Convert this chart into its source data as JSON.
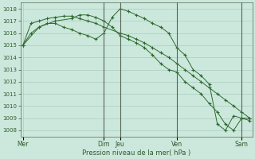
{
  "background_color": "#cce8dc",
  "grid_color": "#aaccc0",
  "line_color": "#2d6a2d",
  "marker_color": "#2d6a2d",
  "xlabel_text": "Pression niveau de la mer( hPa )",
  "ylim": [
    1007.5,
    1018.5
  ],
  "yticks": [
    1008,
    1009,
    1010,
    1011,
    1012,
    1013,
    1014,
    1015,
    1016,
    1017,
    1018
  ],
  "x_day_labels": [
    "Mer",
    "Dim",
    "Jeu",
    "Ven",
    "Sam"
  ],
  "x_day_positions": [
    0,
    10,
    12,
    19,
    27
  ],
  "xlim": [
    -0.3,
    28.3
  ],
  "series1": {
    "x": [
      0,
      1,
      2,
      3,
      4,
      5,
      6,
      7,
      8,
      9,
      10,
      12,
      13,
      14,
      15,
      16,
      17,
      18,
      19,
      20,
      21,
      22,
      23,
      24,
      25,
      26,
      27,
      28
    ],
    "y": [
      1015.0,
      1016.8,
      1017.0,
      1017.2,
      1017.3,
      1017.4,
      1017.4,
      1017.2,
      1017.0,
      1016.8,
      1016.5,
      1016.0,
      1015.8,
      1015.5,
      1015.2,
      1014.8,
      1014.4,
      1014.0,
      1013.5,
      1013.0,
      1012.5,
      1012.0,
      1011.5,
      1011.0,
      1010.5,
      1010.0,
      1009.5,
      1009.0
    ]
  },
  "series2": {
    "x": [
      0,
      2,
      4,
      6,
      7,
      8,
      9,
      10,
      11,
      12,
      13,
      14,
      15,
      16,
      17,
      18,
      19,
      20,
      21,
      22,
      23,
      24,
      25,
      26,
      27,
      28
    ],
    "y": [
      1015.0,
      1016.5,
      1017.0,
      1017.2,
      1017.5,
      1017.5,
      1017.3,
      1017.0,
      1016.5,
      1015.8,
      1015.5,
      1015.2,
      1014.8,
      1014.2,
      1013.5,
      1013.0,
      1012.8,
      1012.0,
      1011.5,
      1011.0,
      1010.2,
      1009.5,
      1008.5,
      1008.0,
      1009.0,
      1009.0
    ]
  },
  "series3": {
    "x": [
      0,
      1,
      2,
      3,
      4,
      5,
      6,
      7,
      8,
      9,
      10,
      11,
      12,
      13,
      14,
      15,
      16,
      17,
      18,
      19,
      20,
      21,
      22,
      23,
      24,
      25,
      26,
      27,
      28
    ],
    "y": [
      1015.0,
      1016.0,
      1016.5,
      1016.8,
      1016.8,
      1016.5,
      1016.3,
      1016.0,
      1015.8,
      1015.5,
      1016.0,
      1017.3,
      1018.0,
      1017.8,
      1017.5,
      1017.2,
      1016.8,
      1016.5,
      1016.0,
      1014.8,
      1014.2,
      1013.0,
      1012.5,
      1011.8,
      1008.5,
      1008.0,
      1009.2,
      1009.0,
      1008.8
    ]
  },
  "vline_color": "#556655",
  "vline_positions": [
    10,
    12,
    19,
    27
  ]
}
